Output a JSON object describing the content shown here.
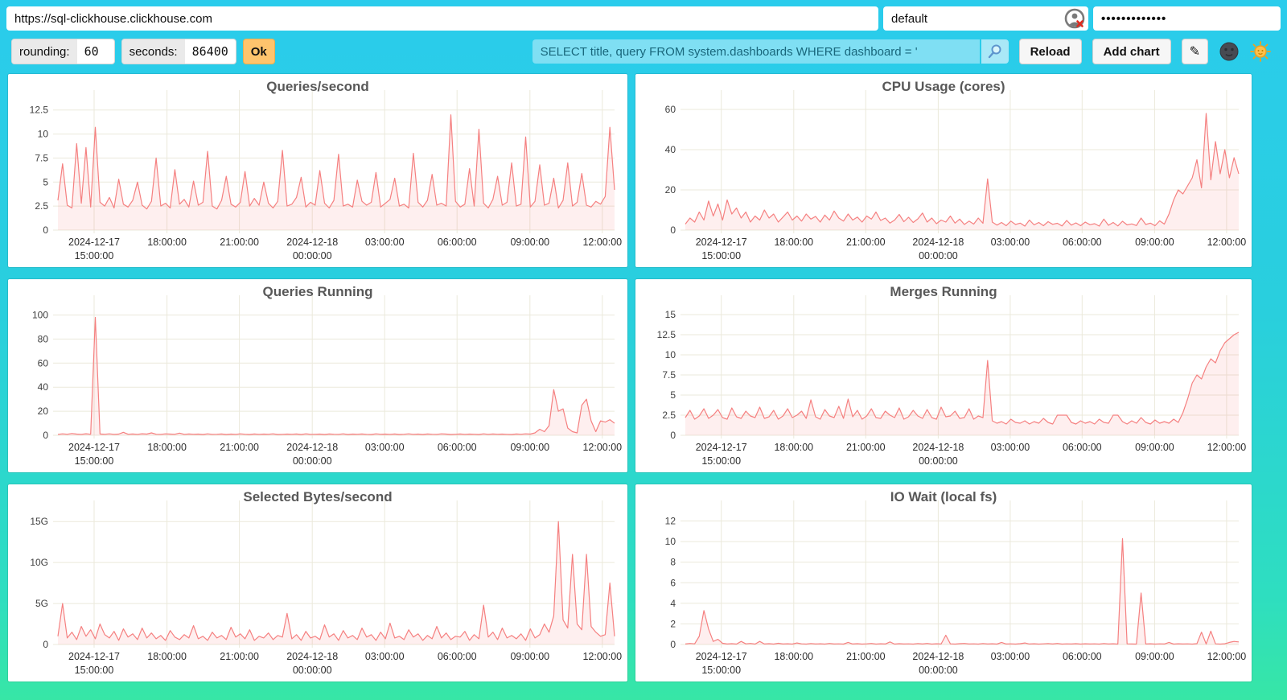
{
  "browser_bar": {
    "url": "https://sql-clickhouse.clickhouse.com",
    "user": "default",
    "password_masked": "•••••••••••••"
  },
  "toolbar": {
    "rounding_label": "rounding:",
    "rounding_value": "60",
    "seconds_label": "seconds:",
    "seconds_value": "86400",
    "ok_label": "Ok",
    "query": "SELECT title, query FROM system.dashboards WHERE dashboard = '",
    "reload_label": "Reload",
    "add_chart_label": "Add chart",
    "edit_icon": "✎"
  },
  "icons": {
    "user_status": "user-circle-with-red-x-badge",
    "search": "magnifier",
    "edit": "pencil",
    "theme_dark": "new-moon-face",
    "theme_light": "sun-with-face"
  },
  "colors": {
    "background_top": "#2accec",
    "background_bottom": "#37e6a6",
    "line": "#f58080",
    "area_fill": "rgba(245,128,128,0.13)",
    "grid": "#ebe9db",
    "ok_button": "#fec46d",
    "query_bg": "#7fdff3",
    "title_text": "#585858"
  },
  "x_axis": {
    "tick_labels": [
      [
        "2024-12-17",
        "15:00:00"
      ],
      [
        "18:00:00"
      ],
      [
        "21:00:00"
      ],
      [
        "2024-12-18",
        "00:00:00"
      ],
      [
        "03:00:00"
      ],
      [
        "06:00:00"
      ],
      [
        "09:00:00"
      ],
      [
        "12:00:00"
      ]
    ]
  },
  "chart_data": [
    {
      "type": "area",
      "title": "Queries/second",
      "ylim": [
        0,
        13.4
      ],
      "y_ticks": [
        {
          "v": 0,
          "label": "0"
        },
        {
          "v": 2.5,
          "label": "2.5"
        },
        {
          "v": 5,
          "label": "5"
        },
        {
          "v": 7.5,
          "label": "7.5"
        },
        {
          "v": 10,
          "label": "10"
        },
        {
          "v": 12.5,
          "label": "12.5"
        }
      ],
      "values": [
        3.1,
        6.9,
        2.6,
        2.3,
        9,
        2.8,
        8.6,
        2.4,
        10.7,
        2.9,
        2.5,
        3.4,
        2.3,
        5.3,
        2.7,
        2.4,
        3.1,
        5,
        2.6,
        2.2,
        3,
        7.5,
        2.5,
        2.8,
        2.3,
        6.3,
        2.7,
        3.2,
        2.4,
        5.1,
        2.6,
        2.9,
        8.2,
        2.5,
        2.2,
        3.1,
        5.6,
        2.7,
        2.4,
        2.9,
        6.1,
        2.5,
        3.3,
        2.6,
        5,
        2.8,
        2.3,
        3,
        8.3,
        2.5,
        2.7,
        3.4,
        5.5,
        2.4,
        2.9,
        2.6,
        6.2,
        2.8,
        2.3,
        3.1,
        7.9,
        2.5,
        2.7,
        2.4,
        5.2,
        3,
        2.6,
        2.9,
        6,
        2.4,
        2.8,
        3.2,
        5.4,
        2.5,
        2.7,
        2.3,
        8,
        2.9,
        2.4,
        3.1,
        5.8,
        2.6,
        2.8,
        2.5,
        12,
        3,
        2.4,
        2.7,
        6.4,
        2.5,
        10.5,
        2.8,
        2.3,
        3.2,
        5.6,
        2.6,
        2.9,
        7,
        2.5,
        2.7,
        9.7,
        2.4,
        3,
        6.8,
        2.6,
        2.8,
        5.4,
        2.3,
        3.1,
        7,
        2.5,
        2.9,
        5.9,
        2.6,
        2.4,
        3,
        2.7,
        3.5,
        10.7,
        4.2
      ]
    },
    {
      "type": "area",
      "title": "CPU Usage (cores)",
      "ylim": [
        0,
        64
      ],
      "y_ticks": [
        {
          "v": 0,
          "label": "0"
        },
        {
          "v": 20,
          "label": "20"
        },
        {
          "v": 40,
          "label": "40"
        },
        {
          "v": 60,
          "label": "60"
        }
      ],
      "values": [
        3,
        6,
        4,
        9,
        5,
        14.5,
        7,
        13,
        5,
        15,
        8,
        11,
        6,
        9,
        4,
        7,
        5,
        10,
        6,
        8,
        4,
        6.5,
        9,
        5,
        7,
        4.5,
        8,
        5.5,
        6.8,
        4,
        7.5,
        5,
        9.5,
        6,
        4.5,
        8,
        5,
        6.5,
        4,
        7,
        5.5,
        9,
        4.8,
        6,
        3.5,
        5,
        7.8,
        4.2,
        6.4,
        3.8,
        5.6,
        8.5,
        4,
        6,
        3.2,
        5,
        4,
        7,
        3.5,
        5.5,
        2.8,
        4.5,
        3,
        6,
        3.4,
        25.5,
        4,
        2.5,
        3.8,
        2.2,
        4.5,
        2.8,
        3.5,
        2,
        5,
        2.6,
        3.8,
        2.2,
        4.2,
        2.9,
        3.4,
        2.1,
        4.8,
        2.5,
        3.6,
        2.2,
        4,
        2.7,
        3.2,
        2,
        5.5,
        2.4,
        3.8,
        2.1,
        4.4,
        2.6,
        3.1,
        2.3,
        6,
        2.8,
        3.5,
        2.2,
        4.6,
        3,
        8,
        15,
        20,
        18,
        22,
        26,
        35,
        21,
        58,
        25,
        44,
        28,
        40,
        26,
        36,
        28
      ]
    },
    {
      "type": "area",
      "title": "Queries Running",
      "ylim": [
        0,
        107
      ],
      "y_ticks": [
        {
          "v": 0,
          "label": "0"
        },
        {
          "v": 20,
          "label": "20"
        },
        {
          "v": 40,
          "label": "40"
        },
        {
          "v": 60,
          "label": "60"
        },
        {
          "v": 80,
          "label": "80"
        },
        {
          "v": 100,
          "label": "100"
        }
      ],
      "values": [
        0.8,
        1.2,
        0.9,
        1.5,
        1,
        0.8,
        1.3,
        0.9,
        98,
        1.1,
        0.9,
        1.2,
        0.8,
        1,
        2.5,
        0.9,
        1.1,
        0.8,
        1.3,
        1,
        2,
        0.9,
        0.8,
        1.2,
        1,
        0.9,
        1.8,
        0.8,
        1.1,
        0.9,
        1,
        0.7,
        1.2,
        0.8,
        0.9,
        1.1,
        0.7,
        1,
        0.8,
        1.2,
        0.9,
        0.7,
        1.1,
        0.8,
        1,
        0.9,
        1.2,
        0.7,
        0.8,
        1,
        0.9,
        1.1,
        0.7,
        1.2,
        0.8,
        0.9,
        1,
        0.7,
        1.1,
        0.9,
        0.8,
        1.2,
        0.7,
        1,
        0.9,
        1.1,
        0.8,
        0.7,
        1.2,
        0.9,
        1,
        0.8,
        1.1,
        0.7,
        0.9,
        1.2,
        0.8,
        1,
        0.7,
        1.1,
        0.9,
        0.8,
        1.2,
        1,
        0.7,
        0.9,
        1.1,
        0.8,
        1,
        0.9,
        0.7,
        1.2,
        0.8,
        1.1,
        0.9,
        1,
        0.8,
        0.7,
        1.1,
        0.9,
        1.2,
        1,
        2,
        5,
        3,
        8,
        38,
        20,
        22,
        6,
        3,
        2,
        25,
        30,
        12,
        3,
        12,
        11,
        13,
        10
      ]
    },
    {
      "type": "area",
      "title": "Merges Running",
      "ylim": [
        0,
        16
      ],
      "y_ticks": [
        {
          "v": 0,
          "label": "0"
        },
        {
          "v": 2.5,
          "label": "2.5"
        },
        {
          "v": 5,
          "label": "5"
        },
        {
          "v": 7.5,
          "label": "7.5"
        },
        {
          "v": 10,
          "label": "10"
        },
        {
          "v": 12.5,
          "label": "12.5"
        },
        {
          "v": 15,
          "label": "15"
        }
      ],
      "values": [
        2.2,
        3.1,
        2,
        2.4,
        3.3,
        2.1,
        2.5,
        3.2,
        2.2,
        2,
        3.4,
        2.3,
        2.1,
        3,
        2.4,
        2.2,
        3.5,
        2.1,
        2.3,
        3.1,
        2,
        2.4,
        3.3,
        2.2,
        2.5,
        3,
        2.1,
        4.4,
        2.3,
        2,
        3.2,
        2.4,
        2.2,
        3.6,
        2.1,
        4.5,
        2.3,
        3.1,
        2,
        2.4,
        3.3,
        2.2,
        2.1,
        3,
        2.5,
        2.2,
        3.4,
        2,
        2.3,
        3.1,
        2.4,
        2.1,
        3.2,
        2.2,
        2,
        3.5,
        2.3,
        2.4,
        3,
        2.1,
        2.2,
        3.3,
        2,
        2.4,
        2.2,
        9.3,
        1.8,
        1.5,
        1.7,
        1.4,
        2,
        1.6,
        1.5,
        1.8,
        1.4,
        1.7,
        1.5,
        2.1,
        1.6,
        1.4,
        2.5,
        2.5,
        2.5,
        1.6,
        1.4,
        1.8,
        1.5,
        1.7,
        1.4,
        2,
        1.6,
        1.5,
        2.5,
        2.5,
        1.7,
        1.4,
        1.8,
        1.5,
        2.2,
        1.6,
        1.4,
        1.9,
        1.5,
        1.7,
        1.5,
        2,
        1.6,
        2.8,
        4.5,
        6.5,
        7.5,
        7,
        8.5,
        9.5,
        9,
        10.5,
        11.5,
        12,
        12.5,
        12.8
      ]
    },
    {
      "type": "area",
      "title": "Selected Bytes/second",
      "unit": "G",
      "ylim": [
        0,
        16.2
      ],
      "y_ticks": [
        {
          "v": 0,
          "label": "0"
        },
        {
          "v": 5,
          "label": "5G"
        },
        {
          "v": 10,
          "label": "10G"
        },
        {
          "v": 15,
          "label": "15G"
        }
      ],
      "values": [
        1,
        5,
        0.8,
        1.5,
        0.6,
        2.2,
        1,
        1.8,
        0.7,
        2.5,
        1.2,
        0.8,
        1.6,
        0.5,
        1.9,
        0.9,
        1.3,
        0.6,
        2,
        0.8,
        1.4,
        0.7,
        1.1,
        0.5,
        1.7,
        0.9,
        0.6,
        1.2,
        0.8,
        2.3,
        0.7,
        1,
        0.5,
        1.5,
        0.8,
        1.1,
        0.6,
        2.1,
        0.9,
        1.3,
        0.7,
        1.8,
        0.5,
        1,
        0.8,
        1.4,
        0.6,
        1.1,
        0.9,
        3.8,
        0.7,
        1.2,
        0.5,
        1.6,
        0.8,
        1,
        0.6,
        2.4,
        0.9,
        1.3,
        0.5,
        1.7,
        0.8,
        1.1,
        0.6,
        2,
        0.9,
        1.2,
        0.5,
        1.5,
        0.7,
        2.6,
        0.8,
        1,
        0.6,
        1.8,
        0.9,
        1.3,
        0.5,
        1.1,
        0.7,
        2.2,
        0.8,
        1.4,
        0.6,
        1,
        0.9,
        1.6,
        0.5,
        1.2,
        0.7,
        4.8,
        0.9,
        1.5,
        0.6,
        2,
        0.8,
        1.1,
        0.7,
        1.3,
        0.5,
        1.9,
        0.8,
        1.2,
        2.5,
        1.5,
        3.5,
        15,
        3,
        2,
        11,
        2.5,
        1.8,
        11,
        2.2,
        1.5,
        1,
        1.2,
        7.5,
        1
      ]
    },
    {
      "type": "area",
      "title": "IO Wait (local fs)",
      "ylim": [
        0,
        12.9
      ],
      "y_ticks": [
        {
          "v": 0,
          "label": "0"
        },
        {
          "v": 2,
          "label": "2"
        },
        {
          "v": 4,
          "label": "4"
        },
        {
          "v": 6,
          "label": "6"
        },
        {
          "v": 8,
          "label": "8"
        },
        {
          "v": 10,
          "label": "10"
        },
        {
          "v": 12,
          "label": "12"
        }
      ],
      "values": [
        0.05,
        0.1,
        0.06,
        0.8,
        3.3,
        1.5,
        0.3,
        0.5,
        0.12,
        0.05,
        0.08,
        0.04,
        0.3,
        0.06,
        0.1,
        0.04,
        0.3,
        0.05,
        0.08,
        0.04,
        0.12,
        0.05,
        0.07,
        0.04,
        0.15,
        0.06,
        0.04,
        0.09,
        0.05,
        0.07,
        0.04,
        0.1,
        0.05,
        0.06,
        0.04,
        0.2,
        0.05,
        0.08,
        0.04,
        0.06,
        0.1,
        0.04,
        0.07,
        0.05,
        0.25,
        0.04,
        0.08,
        0.05,
        0.06,
        0.04,
        0.09,
        0.05,
        0.1,
        0.04,
        0.07,
        0.05,
        0.9,
        0.06,
        0.04,
        0.08,
        0.1,
        0.05,
        0.06,
        0.04,
        0.09,
        0.05,
        0.07,
        0.04,
        0.2,
        0.05,
        0.06,
        0.04,
        0.08,
        0.15,
        0.05,
        0.07,
        0.04,
        0.06,
        0.09,
        0.05,
        0.1,
        0.04,
        0.06,
        0.05,
        0.08,
        0.04,
        0.07,
        0.05,
        0.06,
        0.04,
        0.09,
        0.05,
        0.07,
        0.04,
        10.3,
        0.06,
        0.05,
        0.04,
        5,
        0.05,
        0.07,
        0.04,
        0.06,
        0.05,
        0.2,
        0.04,
        0.07,
        0.05,
        0.06,
        0.04,
        0.08,
        1.2,
        0.05,
        1.3,
        0.06,
        0.04,
        0.07,
        0.2,
        0.3,
        0.25
      ]
    }
  ]
}
